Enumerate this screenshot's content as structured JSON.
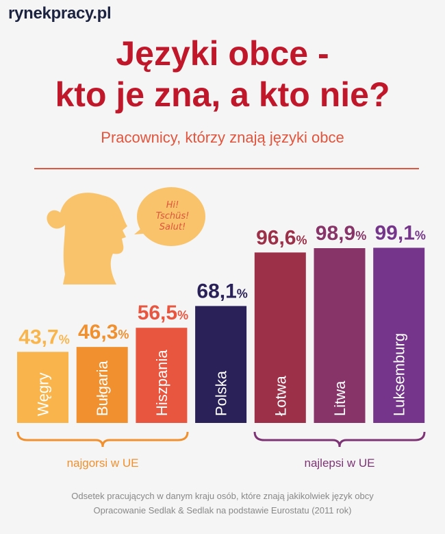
{
  "logo": "rynekpracy.pl",
  "title_line1": "Języki obce -",
  "title_line2": "kto je zna, a kto nie?",
  "subtitle": "Pracownicy, którzy znają języki obce",
  "bubble": [
    "Hi!",
    "Tschüs!",
    "Salut!"
  ],
  "group_worst": "najgorsi w UE",
  "group_best": "najlepsi w UE",
  "footnote1": "Odsetek pracujących w danym kraju osób, które znają jakikolwiek język obcy",
  "footnote2": "Opracowanie Sedlak & Sedlak na podstawie Eurostatu (2011 rok)",
  "colors": {
    "worst": "#f0902f",
    "best": "#7d3474"
  },
  "chart_data": {
    "type": "bar",
    "title": "Pracownicy, którzy znają języki obce",
    "unit": "%",
    "categories": [
      "Węgry",
      "Bułgaria",
      "Hiszpania",
      "Polska",
      "Łotwa",
      "Litwa",
      "Luksemburg"
    ],
    "values": [
      43.7,
      46.3,
      56.5,
      68.1,
      96.6,
      98.9,
      99.1
    ],
    "labels": [
      "43,7",
      "46,3",
      "56,5",
      "68,1",
      "96,6",
      "98,9",
      "99,1"
    ],
    "colors": [
      "#f9b54c",
      "#f0902f",
      "#e85640",
      "#2a2159",
      "#9c3048",
      "#873469",
      "#74358a"
    ]
  }
}
